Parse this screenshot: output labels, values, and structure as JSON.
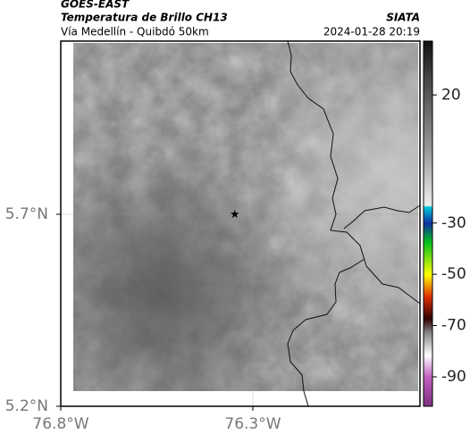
{
  "header": {
    "satellite": "GOES-EAST",
    "product": "Temperatura de Brillo CH13",
    "region": "Vía Medellín - Quibdó 50km",
    "source": "SIATA",
    "datetime": "2024-01-28 20:19"
  },
  "map": {
    "xlim": [
      -76.8,
      -75.865
    ],
    "ylim": [
      5.2,
      6.151
    ],
    "xticks": [
      {
        "value": -76.8,
        "label": "76.8°W"
      },
      {
        "value": -76.3,
        "label": "76.3°W"
      }
    ],
    "yticks": [
      {
        "value": 5.2,
        "label": "5.2°N"
      },
      {
        "value": 5.7,
        "label": "5.7°N"
      }
    ],
    "grid": true,
    "marker": {
      "lon": -76.347,
      "lat": 5.7
    }
  },
  "colorbar": {
    "lim": [
      -101.5,
      41
    ],
    "ticks": [
      20,
      -30,
      -50,
      -70,
      -90
    ]
  }
}
